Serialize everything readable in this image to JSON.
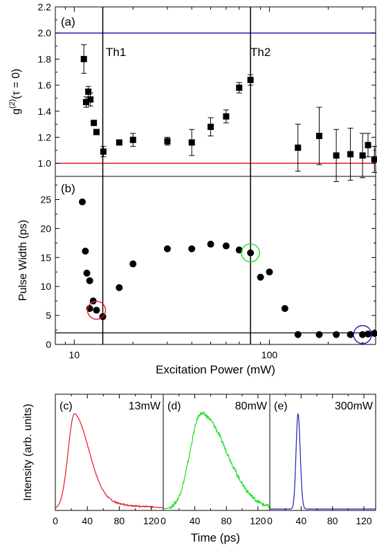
{
  "colors": {
    "red": "#e8161d",
    "blue": "#1f1fb4",
    "green": "#22dd22",
    "black": "#000000"
  },
  "chart_data": [
    {
      "panel": "a",
      "type": "scatter",
      "panel_label": "(a)",
      "ylabel_prefix": "g",
      "ylabel_sup": "(2)",
      "ylabel_suffix": "(τ = 0)",
      "x_scale": "log",
      "xlim": [
        8,
        350
      ],
      "ylim": [
        0.9,
        2.2
      ],
      "yticks": [
        "1.0",
        "1.2",
        "1.4",
        "1.6",
        "1.8",
        "2.0",
        "2.2"
      ],
      "yticks_values": [
        1.0,
        1.2,
        1.4,
        1.6,
        1.8,
        2.0,
        2.2
      ],
      "threshold_labels": [
        "Th1",
        "Th2"
      ],
      "thresholds": [
        14,
        80
      ],
      "hlines": [
        2.0,
        1.0
      ],
      "points": [
        {
          "x": 11.2,
          "y": 1.8,
          "err": 0.11
        },
        {
          "x": 11.5,
          "y": 1.47,
          "err": 0.04
        },
        {
          "x": 11.8,
          "y": 1.55,
          "err": 0.04
        },
        {
          "x": 12.1,
          "y": 1.49,
          "err": 0.05
        },
        {
          "x": 12.6,
          "y": 1.31,
          "err": 0.02
        },
        {
          "x": 13.0,
          "y": 1.24,
          "err": 0.01
        },
        {
          "x": 14.1,
          "y": 1.09,
          "err": 0.04
        },
        {
          "x": 17.0,
          "y": 1.16,
          "err": 0.01
        },
        {
          "x": 20.0,
          "y": 1.18,
          "err": 0.05
        },
        {
          "x": 30.0,
          "y": 1.17,
          "err": 0.03
        },
        {
          "x": 40.0,
          "y": 1.16,
          "err": 0.1
        },
        {
          "x": 50.0,
          "y": 1.28,
          "err": 0.07
        },
        {
          "x": 60.0,
          "y": 1.36,
          "err": 0.05
        },
        {
          "x": 70.0,
          "y": 1.58,
          "err": 0.04
        },
        {
          "x": 80.0,
          "y": 1.64,
          "err": 0.04
        },
        {
          "x": 140.0,
          "y": 1.12,
          "err": 0.18
        },
        {
          "x": 180.0,
          "y": 1.21,
          "err": 0.22
        },
        {
          "x": 220.0,
          "y": 1.06,
          "err": 0.2
        },
        {
          "x": 260.0,
          "y": 1.07,
          "err": 0.2
        },
        {
          "x": 300.0,
          "y": 1.06,
          "err": 0.17
        },
        {
          "x": 320.0,
          "y": 1.14,
          "err": 0.09
        },
        {
          "x": 345.0,
          "y": 1.03,
          "err": 0.1
        }
      ]
    },
    {
      "panel": "b",
      "type": "scatter",
      "panel_label": "(b)",
      "ylabel": "Pulse Width (ps)",
      "xlabel": "Excitation Power (mW)",
      "x_scale": "log",
      "xlim": [
        8,
        350
      ],
      "ylim": [
        0,
        29
      ],
      "yticks": [
        "0",
        "5",
        "10",
        "15",
        "20",
        "25"
      ],
      "yticks_values": [
        0,
        5,
        10,
        15,
        20,
        25
      ],
      "xticks": [
        "10",
        "100"
      ],
      "xticks_values": [
        10,
        100
      ],
      "thresholds": [
        14,
        80
      ],
      "hline": 2.0,
      "points": [
        {
          "x": 11.0,
          "y": 24.6
        },
        {
          "x": 11.4,
          "y": 16.1
        },
        {
          "x": 11.6,
          "y": 12.3
        },
        {
          "x": 12.0,
          "y": 11.0
        },
        {
          "x": 12.0,
          "y": 6.2
        },
        {
          "x": 12.5,
          "y": 7.5
        },
        {
          "x": 13.0,
          "y": 5.9
        },
        {
          "x": 14.0,
          "y": 4.8
        },
        {
          "x": 17.0,
          "y": 9.8
        },
        {
          "x": 20.0,
          "y": 13.9
        },
        {
          "x": 30.0,
          "y": 16.5
        },
        {
          "x": 40.0,
          "y": 16.5
        },
        {
          "x": 50.0,
          "y": 17.3
        },
        {
          "x": 60.0,
          "y": 17.0
        },
        {
          "x": 70.0,
          "y": 16.3
        },
        {
          "x": 80.0,
          "y": 15.8
        },
        {
          "x": 90.0,
          "y": 11.6
        },
        {
          "x": 100.0,
          "y": 12.5
        },
        {
          "x": 120.0,
          "y": 6.2
        },
        {
          "x": 140.0,
          "y": 1.7
        },
        {
          "x": 180.0,
          "y": 1.7
        },
        {
          "x": 220.0,
          "y": 1.7
        },
        {
          "x": 260.0,
          "y": 1.7
        },
        {
          "x": 300.0,
          "y": 1.7
        },
        {
          "x": 320.0,
          "y": 1.8
        },
        {
          "x": 345.0,
          "y": 1.9
        }
      ],
      "circles": [
        {
          "x": 13.0,
          "y": 5.9,
          "color": "red"
        },
        {
          "x": 80.0,
          "y": 15.8,
          "color": "green"
        },
        {
          "x": 300.0,
          "y": 1.7,
          "color": "blue"
        }
      ]
    },
    {
      "panel": "c-e",
      "type": "line",
      "ylabel": "Intensity (arb. units)",
      "xlabel": "Time (ps)",
      "xlim": [
        0,
        135
      ],
      "xticks": [
        "0",
        "40",
        "80",
        "120"
      ],
      "xticks_values": [
        0,
        40,
        80,
        120
      ],
      "subpanels": [
        {
          "label": "(c)",
          "power": "13mW",
          "color": "red",
          "peak_time": 24,
          "rise": 8,
          "decay": 18,
          "tail": 0.18,
          "tail_decay": 45
        },
        {
          "label": "(d)",
          "power": "80mW",
          "color": "green",
          "peak_time": 48,
          "rise": 14,
          "decay": 32,
          "tail": 0.0,
          "tail_decay": 40
        },
        {
          "label": "(e)",
          "power": "300mW",
          "color": "blue",
          "peak_time": 36,
          "rise": 2.5,
          "decay": 2.8,
          "tail": 0.0,
          "tail_decay": 10
        }
      ]
    }
  ]
}
